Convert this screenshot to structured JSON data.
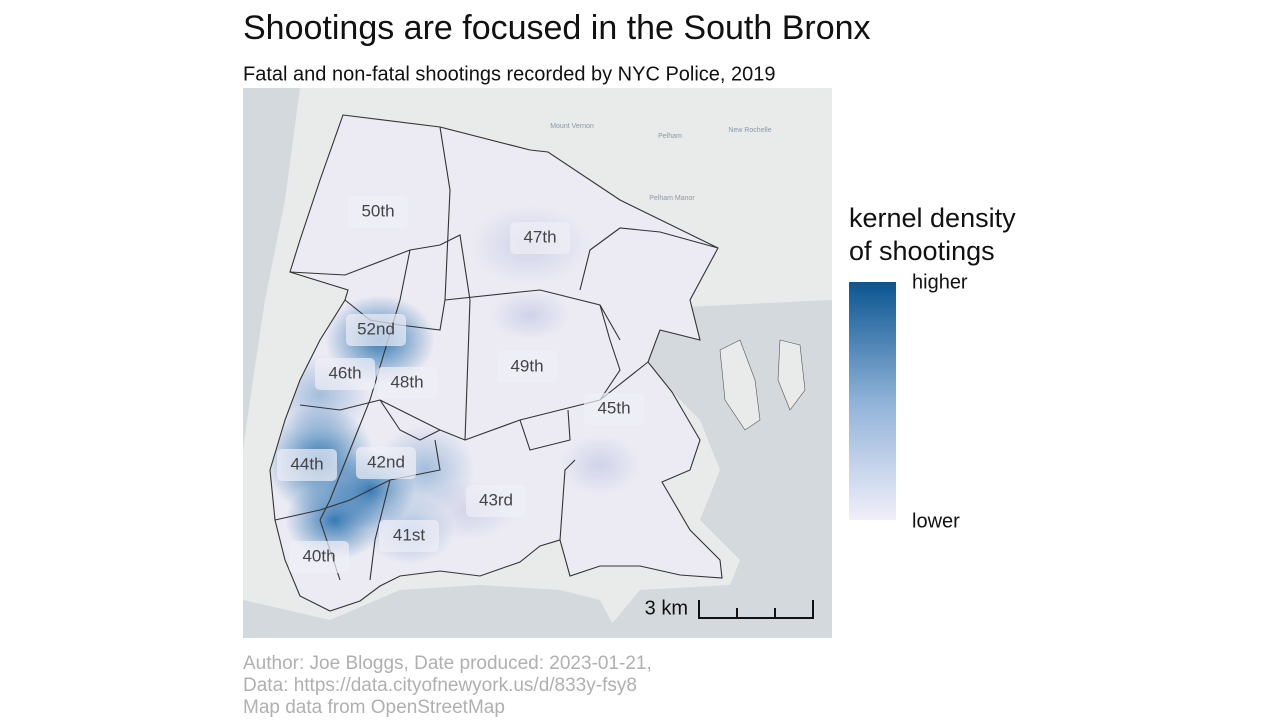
{
  "header": {
    "title": "Shootings are focused in the South Bronx",
    "subtitle": "Fatal and non-fatal shootings recorded by NYC Police, 2019"
  },
  "map": {
    "precincts": [
      "50th",
      "47th",
      "52nd",
      "46th",
      "48th",
      "49th",
      "45th",
      "44th",
      "42nd",
      "43rd",
      "41st",
      "40th"
    ],
    "places": [
      "Mount Vernon",
      "Pelham",
      "New Rochelle",
      "Pelham Manor"
    ],
    "scale_bar": "3 km"
  },
  "legend": {
    "title": [
      "kernel density",
      "of shootings"
    ],
    "high": "higher",
    "low": "lower"
  },
  "caption": [
    "Author: Joe Bloggs, Date produced: 2023-01-21,",
    "Data: https://data.cityofnewyork.us/d/833y-fsy8",
    "Map data from OpenStreetMap"
  ]
}
